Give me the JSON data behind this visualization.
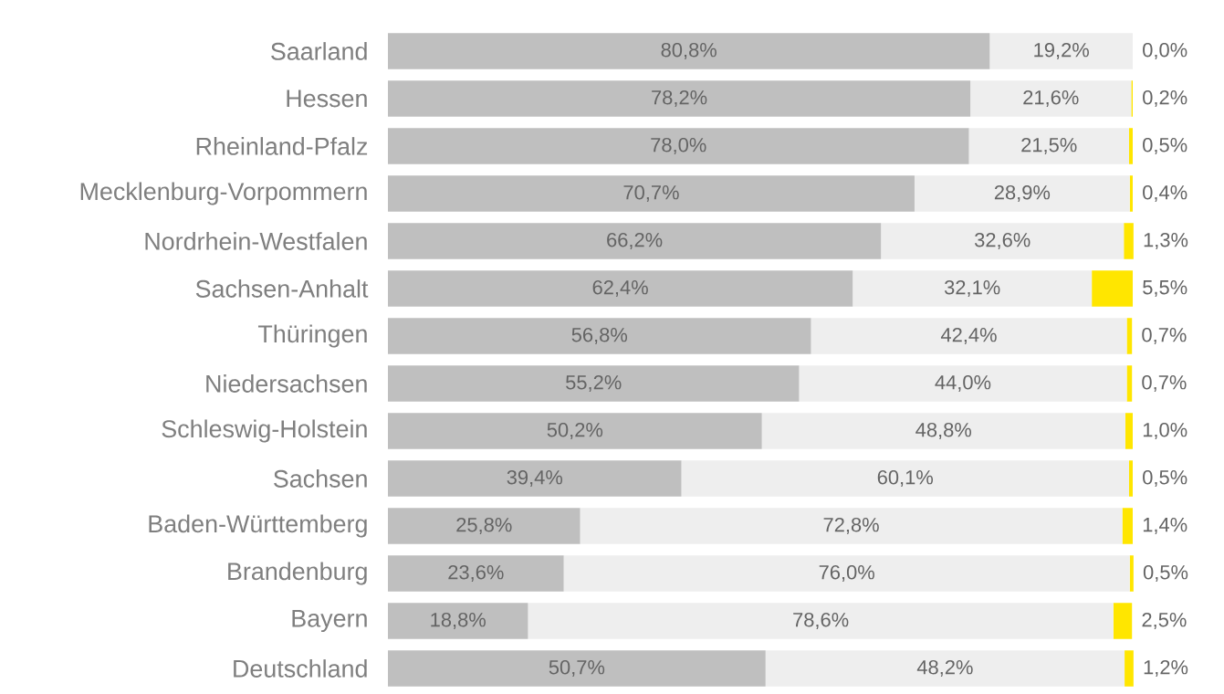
{
  "chart_data": {
    "type": "bar",
    "orientation": "horizontal",
    "stacked": true,
    "tick_labels": "y",
    "xlim": [
      0,
      100
    ],
    "categories": [
      "Saarland",
      "Hessen",
      "Rheinland-Pfalz",
      "Mecklenburg-Vorpommern",
      "Nordrhein-Westfalen",
      "Sachsen-Anhalt",
      "Thüringen",
      "Niedersachsen",
      "Schleswig-Holstein",
      "Sachsen",
      "Baden-Württemberg",
      "Brandenburg",
      "Bayern",
      "Deutschland"
    ],
    "series": [
      {
        "color": "#bfbfbf",
        "values": [
          80.8,
          78.2,
          78.0,
          70.7,
          66.2,
          62.4,
          56.8,
          55.2,
          50.2,
          39.4,
          25.8,
          23.6,
          18.8,
          50.7
        ],
        "value_labels": [
          "80,8%",
          "78,2%",
          "78,0%",
          "70,7%",
          "66,2%",
          "62,4%",
          "56,8%",
          "55,2%",
          "50,2%",
          "39,4%",
          "25,8%",
          "23,6%",
          "18,8%",
          "50,7%"
        ]
      },
      {
        "color": "#eeeeee",
        "values": [
          19.2,
          21.6,
          21.5,
          28.9,
          32.6,
          32.1,
          42.4,
          44.0,
          48.8,
          60.1,
          72.8,
          76.0,
          78.6,
          48.2
        ],
        "value_labels": [
          "19,2%",
          "21,6%",
          "21,5%",
          "28,9%",
          "32,6%",
          "32,1%",
          "42,4%",
          "44,0%",
          "48,8%",
          "60,1%",
          "72,8%",
          "76,0%",
          "78,6%",
          "48,2%"
        ]
      },
      {
        "color": "#ffe600",
        "values": [
          0.0,
          0.2,
          0.5,
          0.4,
          1.3,
          5.5,
          0.7,
          0.7,
          1.0,
          0.5,
          1.4,
          0.5,
          2.5,
          1.2
        ],
        "value_labels": [
          "0,0%",
          "0,2%",
          "0,5%",
          "0,4%",
          "1,3%",
          "5,5%",
          "0,7%",
          "0,7%",
          "1,0%",
          "0,5%",
          "1,4%",
          "0,5%",
          "2,5%",
          "1,2%"
        ]
      }
    ]
  }
}
